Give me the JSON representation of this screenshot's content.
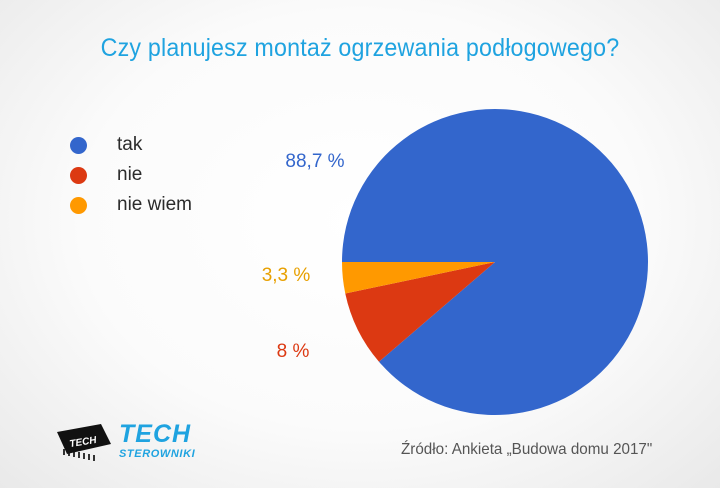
{
  "chart_data": {
    "type": "pie",
    "title": "Czy planujesz montaż ogrzewania podłogowego?",
    "slices": [
      {
        "label": "tak",
        "value": 88.7,
        "value_label": "88,7 %",
        "color": "#3366cc"
      },
      {
        "label": "nie",
        "value": 8,
        "value_label": "8 %",
        "color": "#dc3912"
      },
      {
        "label": "nie wiem",
        "value": 3.3,
        "value_label": "3,3 %",
        "color": "#ff9900"
      }
    ],
    "legend_position": "left"
  },
  "footer": {
    "source": "Źródło: Ankieta „Budowa domu 2017\""
  },
  "logo": {
    "brand": "TECH",
    "subtitle": "STEROWNIKI",
    "chip_text": "TECH",
    "color": "#1fa3e0"
  }
}
